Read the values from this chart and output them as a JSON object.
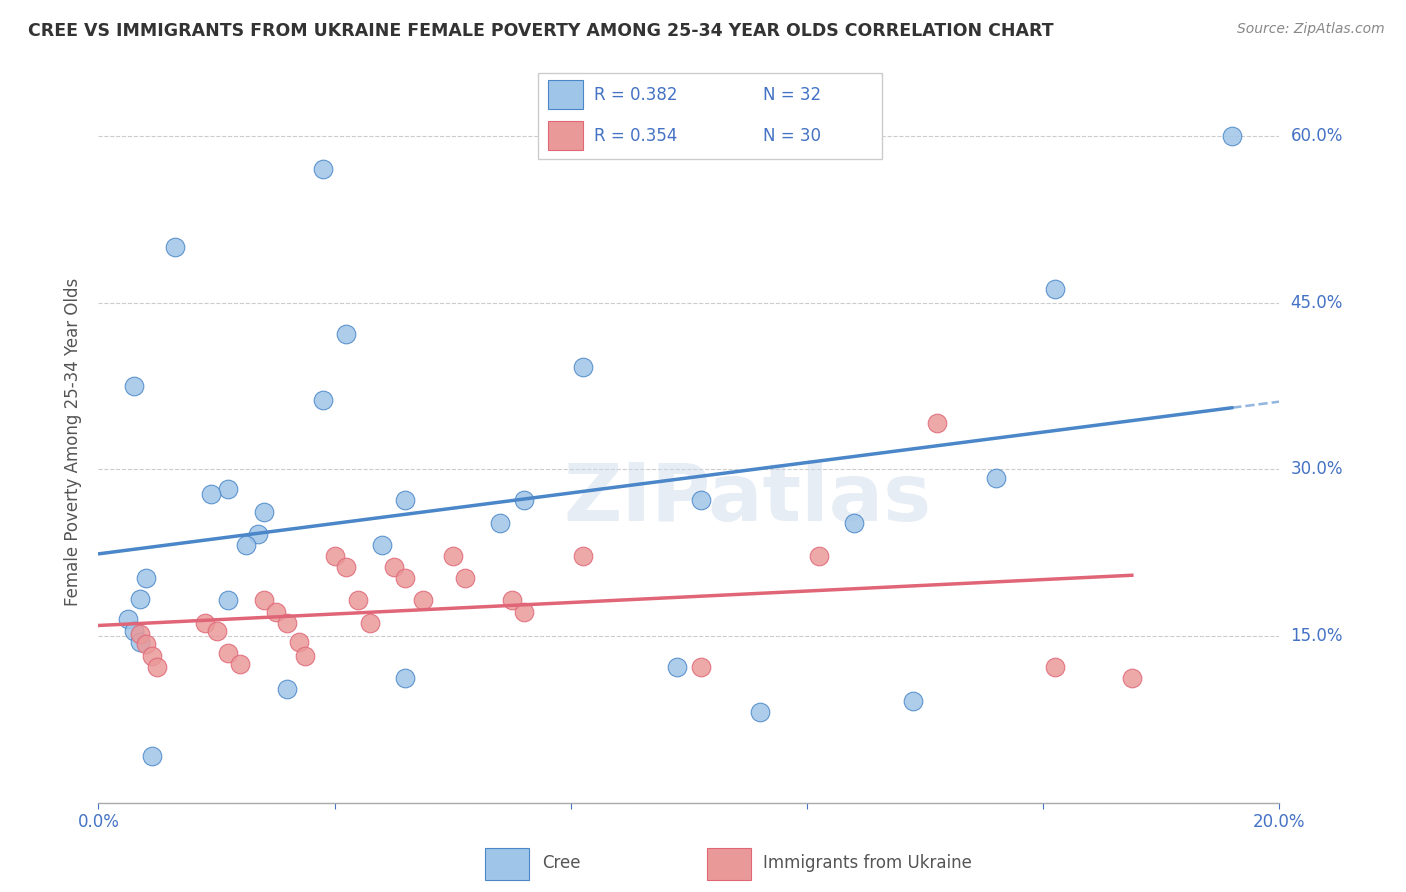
{
  "title": "CREE VS IMMIGRANTS FROM UKRAINE FEMALE POVERTY AMONG 25-34 YEAR OLDS CORRELATION CHART",
  "source": "Source: ZipAtlas.com",
  "ylabel": "Female Poverty Among 25-34 Year Olds",
  "xlim": [
    0.0,
    0.2
  ],
  "ylim": [
    0.0,
    0.65
  ],
  "yticks": [
    0.0,
    0.15,
    0.3,
    0.45,
    0.6
  ],
  "xtick_vals": [
    0.0,
    0.04,
    0.08,
    0.12,
    0.16,
    0.2
  ],
  "legend_r_cree": "R = 0.382",
  "legend_n_cree": "N = 32",
  "legend_r_ukraine": "R = 0.354",
  "legend_n_ukraine": "N = 30",
  "cree_color": "#9fc5e8",
  "ukraine_color": "#ea9999",
  "trend_cree_color": "#4a86c8",
  "trend_ukraine_color": "#e06677",
  "label_color": "#4472c4",
  "text_color": "#555555",
  "watermark": "ZIPatlas",
  "cree_x": [
    0.005,
    0.013,
    0.038,
    0.006,
    0.008,
    0.007,
    0.006,
    0.007,
    0.022,
    0.019,
    0.028,
    0.027,
    0.025,
    0.042,
    0.038,
    0.052,
    0.048,
    0.072,
    0.068,
    0.082,
    0.102,
    0.098,
    0.112,
    0.128,
    0.138,
    0.152,
    0.009,
    0.022,
    0.032,
    0.052,
    0.162,
    0.192
  ],
  "cree_y": [
    0.165,
    0.5,
    0.57,
    0.375,
    0.202,
    0.183,
    0.155,
    0.145,
    0.282,
    0.278,
    0.262,
    0.242,
    0.232,
    0.422,
    0.362,
    0.272,
    0.232,
    0.272,
    0.252,
    0.392,
    0.272,
    0.122,
    0.082,
    0.252,
    0.092,
    0.292,
    0.042,
    0.182,
    0.102,
    0.112,
    0.462,
    0.6
  ],
  "ukraine_x": [
    0.007,
    0.008,
    0.009,
    0.01,
    0.018,
    0.02,
    0.022,
    0.024,
    0.028,
    0.03,
    0.032,
    0.034,
    0.035,
    0.04,
    0.042,
    0.044,
    0.046,
    0.05,
    0.052,
    0.055,
    0.06,
    0.062,
    0.07,
    0.072,
    0.082,
    0.102,
    0.122,
    0.142,
    0.162,
    0.175
  ],
  "ukraine_y": [
    0.152,
    0.143,
    0.132,
    0.122,
    0.162,
    0.155,
    0.135,
    0.125,
    0.182,
    0.172,
    0.162,
    0.145,
    0.132,
    0.222,
    0.212,
    0.182,
    0.162,
    0.212,
    0.202,
    0.182,
    0.222,
    0.202,
    0.182,
    0.172,
    0.222,
    0.122,
    0.222,
    0.342,
    0.122,
    0.112
  ]
}
